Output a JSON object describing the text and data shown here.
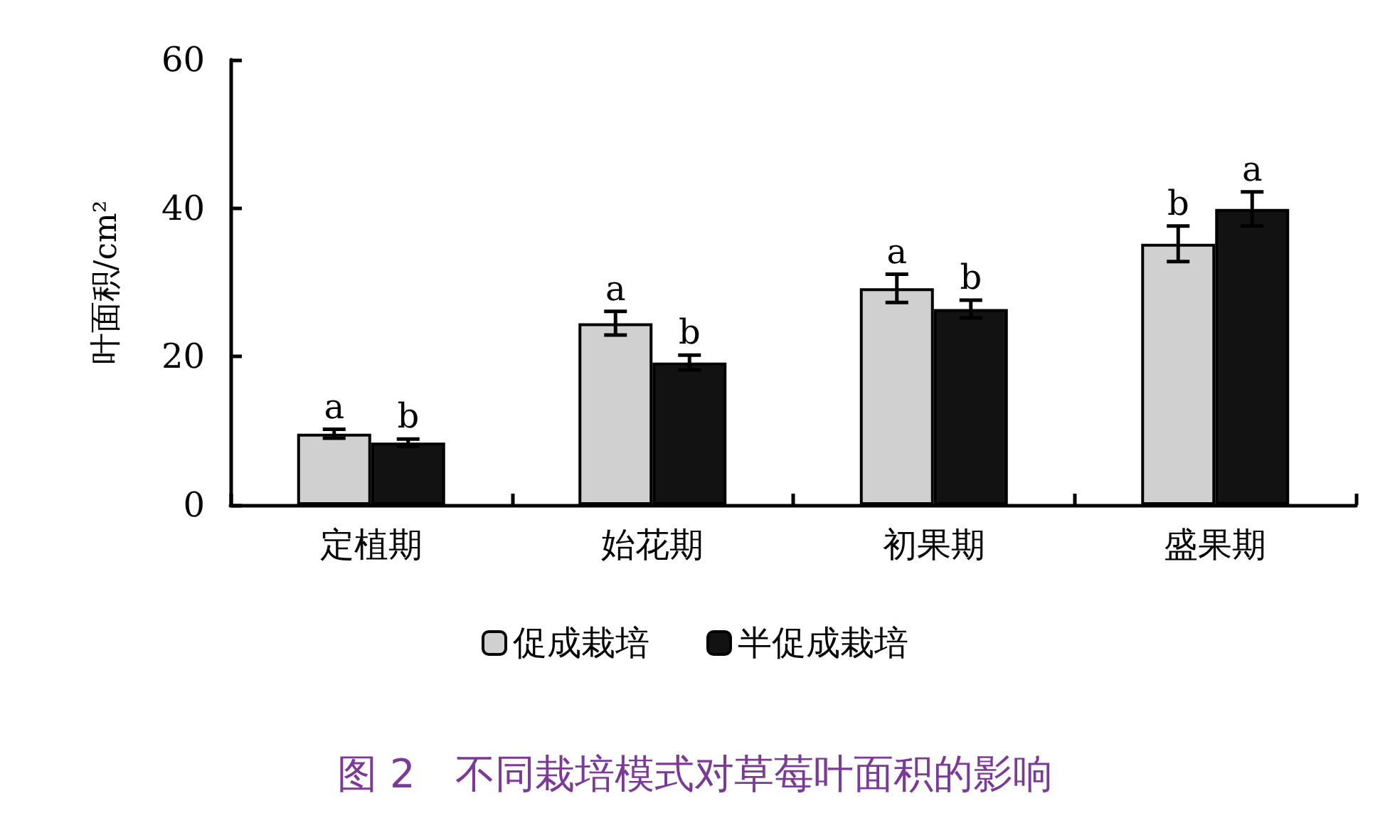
{
  "chart_data": {
    "type": "bar",
    "title": "图 2　不同栽培模式对草莓叶面积的影响",
    "ylabel": "叶面积/cm²",
    "categories": [
      "定植期",
      "始花期",
      "初果期",
      "盛果期"
    ],
    "series": [
      {
        "name": "促成栽培",
        "color": "#d0d0d0",
        "values": [
          9.6,
          24.5,
          29.2,
          35.2
        ],
        "errors": [
          0.6,
          1.6,
          1.9,
          2.4
        ],
        "value_labels": [
          "a",
          "a",
          "a",
          "b"
        ]
      },
      {
        "name": "半促成栽培",
        "color": "#121212",
        "values": [
          8.4,
          19.2,
          26.4,
          39.9
        ],
        "errors": [
          0.5,
          1.0,
          1.2,
          2.3
        ],
        "value_labels": [
          "b",
          "b",
          "b",
          "a"
        ]
      }
    ],
    "ylim": [
      0,
      60
    ],
    "yticks": [
      0,
      20,
      40,
      60
    ],
    "grid": false,
    "legend": "bottom"
  }
}
